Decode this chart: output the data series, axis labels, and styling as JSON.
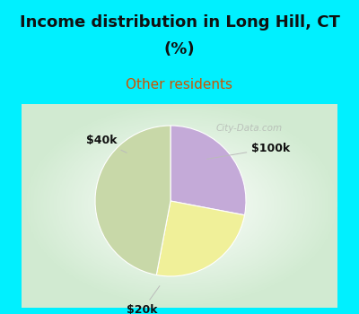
{
  "title_line1": "Income distribution in Long Hill, CT",
  "title_line2": "(%)",
  "subtitle": "Other residents",
  "title_color": "#111111",
  "subtitle_color": "#cc5500",
  "cyan_color": "#00f0ff",
  "slices": [
    {
      "label": "$100k",
      "value": 28,
      "color": "#c4aad8"
    },
    {
      "label": "$40k",
      "value": 25,
      "color": "#f0f099"
    },
    {
      "label": "$20k",
      "value": 47,
      "color": "#c8d8a8"
    }
  ],
  "watermark": "City-Data.com",
  "figsize": [
    4.0,
    3.5
  ],
  "dpi": 100,
  "title_fontsize": 13,
  "subtitle_fontsize": 11
}
